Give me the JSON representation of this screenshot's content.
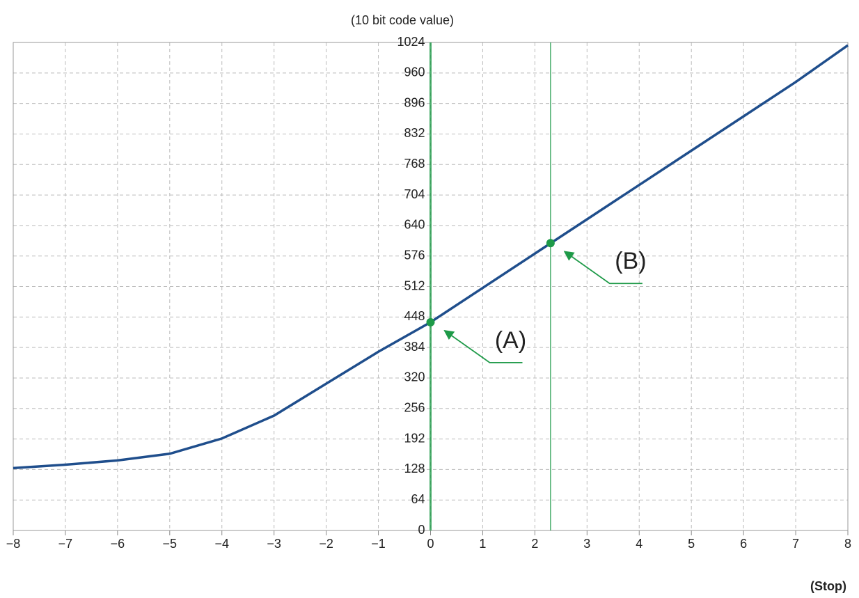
{
  "chart_data": {
    "type": "line",
    "y_label": "(10 bit code value)",
    "x_label": "(Stop)",
    "x": [
      -8,
      -7,
      -6,
      -5,
      -4,
      -3,
      -2,
      -1,
      0,
      1,
      2,
      3,
      4,
      5,
      6,
      7,
      8
    ],
    "values": [
      131,
      138,
      147,
      161,
      193,
      241,
      308,
      375,
      437,
      509,
      581,
      653,
      725,
      797,
      869,
      941,
      1018
    ],
    "color": "#1f4e8c",
    "points": {
      "x": [
        0,
        2.3
      ],
      "values": [
        437,
        603
      ],
      "color": "#1e9a48"
    },
    "annotations": [
      "(A)",
      "(B)"
    ],
    "xlim": [
      -8,
      8
    ],
    "ylim": [
      0,
      1024
    ],
    "xticks": [
      {
        "value": -8,
        "label": "−8"
      },
      {
        "value": -7,
        "label": "−7"
      },
      {
        "value": -6,
        "label": "−6"
      },
      {
        "value": -5,
        "label": "−5"
      },
      {
        "value": -4,
        "label": "−4"
      },
      {
        "value": -3,
        "label": "−3"
      },
      {
        "value": -2,
        "label": "−2"
      },
      {
        "value": -1,
        "label": "−1"
      },
      0,
      1,
      2,
      3,
      4,
      5,
      6,
      7,
      8
    ],
    "yticks": [
      0,
      64,
      128,
      192,
      256,
      320,
      384,
      448,
      512,
      576,
      640,
      704,
      768,
      832,
      896,
      960,
      1024
    ],
    "grid": true
  }
}
